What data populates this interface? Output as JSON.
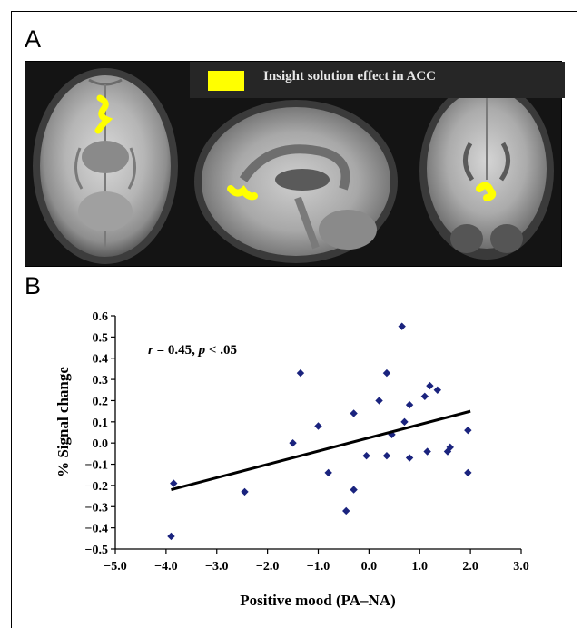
{
  "panel_a": {
    "label": "A",
    "legend_text": "Insight solution effect in ACC",
    "legend_color": "#ffff00"
  },
  "panel_b": {
    "label": "B"
  },
  "chart_data": {
    "type": "scatter",
    "x_label": "Positive mood (PA–NA)",
    "y_label": "% Signal change",
    "x_ticks": [
      "−5.0",
      "−4.0",
      "−3.0",
      "−2.0",
      "−1.0",
      "0.0",
      "1.0",
      "2.0",
      "3.0"
    ],
    "y_ticks": [
      "0.6",
      "0.5",
      "0.4",
      "0.3",
      "0.2",
      "0.1",
      "0.0",
      "−0.1",
      "−0.2",
      "−0.3",
      "−0.4",
      "−0.5"
    ],
    "xlim": [
      -5.0,
      3.0
    ],
    "ylim": [
      -0.5,
      0.6
    ],
    "annotation": {
      "r": "r",
      "r_value": " = 0.45, ",
      "p": "p",
      "p_value": " < .05"
    },
    "point_color": "#1a237e",
    "points": [
      [
        -3.9,
        -0.44
      ],
      [
        -3.85,
        -0.19
      ],
      [
        -2.45,
        -0.23
      ],
      [
        -1.5,
        0.0
      ],
      [
        -1.35,
        0.33
      ],
      [
        -1.0,
        0.08
      ],
      [
        -0.8,
        -0.14
      ],
      [
        -0.45,
        -0.32
      ],
      [
        -0.3,
        0.14
      ],
      [
        -0.3,
        -0.22
      ],
      [
        -0.05,
        -0.06
      ],
      [
        0.2,
        0.2
      ],
      [
        0.35,
        0.33
      ],
      [
        0.35,
        -0.06
      ],
      [
        0.45,
        0.04
      ],
      [
        0.65,
        0.55
      ],
      [
        0.7,
        0.1
      ],
      [
        0.8,
        0.18
      ],
      [
        0.8,
        -0.07
      ],
      [
        1.1,
        0.22
      ],
      [
        1.15,
        -0.04
      ],
      [
        1.2,
        0.27
      ],
      [
        1.35,
        0.25
      ],
      [
        1.55,
        -0.04
      ],
      [
        1.6,
        -0.02
      ],
      [
        1.95,
        -0.14
      ],
      [
        1.95,
        0.06
      ]
    ],
    "regression": {
      "x": [
        -3.9,
        2.0
      ],
      "y": [
        -0.22,
        0.15
      ]
    }
  }
}
